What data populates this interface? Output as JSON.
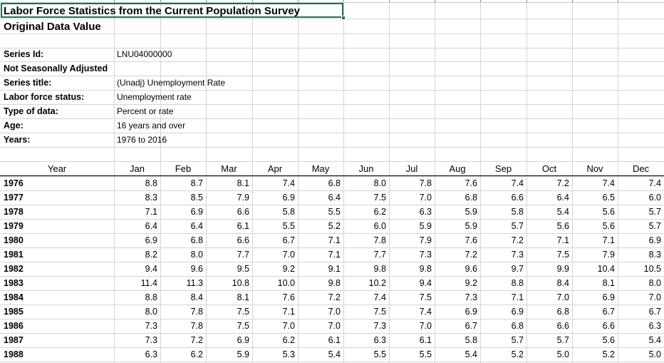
{
  "sheet": {
    "title": "Labor Force Statistics from the Current Population Survey",
    "subtitle": "Original Data Value",
    "meta": [
      {
        "label": "Series Id:",
        "value": "LNU04000000"
      },
      {
        "label": "Not Seasonally Adjusted",
        "value": ""
      },
      {
        "label": "Series title:",
        "value": "(Unadj) Unemployment Rate"
      },
      {
        "label": "Labor force status:",
        "value": "Unemployment rate"
      },
      {
        "label": "Type of data:",
        "value": "Percent or rate"
      },
      {
        "label": "Age:",
        "value": "16 years and over"
      },
      {
        "label": "Years:",
        "value": "1976 to 2016"
      }
    ],
    "table": {
      "columns": [
        "Year",
        "Jan",
        "Feb",
        "Mar",
        "Apr",
        "May",
        "Jun",
        "Jul",
        "Aug",
        "Sep",
        "Oct",
        "Nov",
        "Dec"
      ],
      "rows": [
        {
          "year": "1976",
          "values": [
            "8.8",
            "8.7",
            "8.1",
            "7.4",
            "6.8",
            "8.0",
            "7.8",
            "7.6",
            "7.4",
            "7.2",
            "7.4",
            "7.4"
          ]
        },
        {
          "year": "1977",
          "values": [
            "8.3",
            "8.5",
            "7.9",
            "6.9",
            "6.4",
            "7.5",
            "7.0",
            "6.8",
            "6.6",
            "6.4",
            "6.5",
            "6.0"
          ]
        },
        {
          "year": "1978",
          "values": [
            "7.1",
            "6.9",
            "6.6",
            "5.8",
            "5.5",
            "6.2",
            "6.3",
            "5.9",
            "5.8",
            "5.4",
            "5.6",
            "5.7"
          ]
        },
        {
          "year": "1979",
          "values": [
            "6.4",
            "6.4",
            "6.1",
            "5.5",
            "5.2",
            "6.0",
            "5.9",
            "5.9",
            "5.7",
            "5.6",
            "5.6",
            "5.7"
          ]
        },
        {
          "year": "1980",
          "values": [
            "6.9",
            "6.8",
            "6.6",
            "6.7",
            "7.1",
            "7.8",
            "7.9",
            "7.6",
            "7.2",
            "7.1",
            "7.1",
            "6.9"
          ]
        },
        {
          "year": "1981",
          "values": [
            "8.2",
            "8.0",
            "7.7",
            "7.0",
            "7.1",
            "7.7",
            "7.3",
            "7.2",
            "7.3",
            "7.5",
            "7.9",
            "8.3"
          ]
        },
        {
          "year": "1982",
          "values": [
            "9.4",
            "9.6",
            "9.5",
            "9.2",
            "9.1",
            "9.8",
            "9.8",
            "9.6",
            "9.7",
            "9.9",
            "10.4",
            "10.5"
          ]
        },
        {
          "year": "1983",
          "values": [
            "11.4",
            "11.3",
            "10.8",
            "10.0",
            "9.8",
            "10.2",
            "9.4",
            "9.2",
            "8.8",
            "8.4",
            "8.1",
            "8.0"
          ]
        },
        {
          "year": "1984",
          "values": [
            "8.8",
            "8.4",
            "8.1",
            "7.6",
            "7.2",
            "7.4",
            "7.5",
            "7.3",
            "7.1",
            "7.0",
            "6.9",
            "7.0"
          ]
        },
        {
          "year": "1985",
          "values": [
            "8.0",
            "7.8",
            "7.5",
            "7.1",
            "7.0",
            "7.5",
            "7.4",
            "6.9",
            "6.9",
            "6.8",
            "6.7",
            "6.7"
          ]
        },
        {
          "year": "1986",
          "values": [
            "7.3",
            "7.8",
            "7.5",
            "7.0",
            "7.0",
            "7.3",
            "7.0",
            "6.7",
            "6.8",
            "6.6",
            "6.6",
            "6.3"
          ]
        },
        {
          "year": "1987",
          "values": [
            "7.3",
            "7.2",
            "6.9",
            "6.2",
            "6.1",
            "6.3",
            "6.1",
            "5.8",
            "5.7",
            "5.7",
            "5.6",
            "5.4"
          ]
        },
        {
          "year": "1988",
          "values": [
            "6.3",
            "6.2",
            "5.9",
            "5.3",
            "5.4",
            "5.5",
            "5.5",
            "5.4",
            "5.2",
            "5.0",
            "5.2",
            "5.0"
          ]
        }
      ]
    }
  },
  "colors": {
    "grid": "#d4d4d4",
    "selection": "#1e7145",
    "text": "#000000"
  }
}
